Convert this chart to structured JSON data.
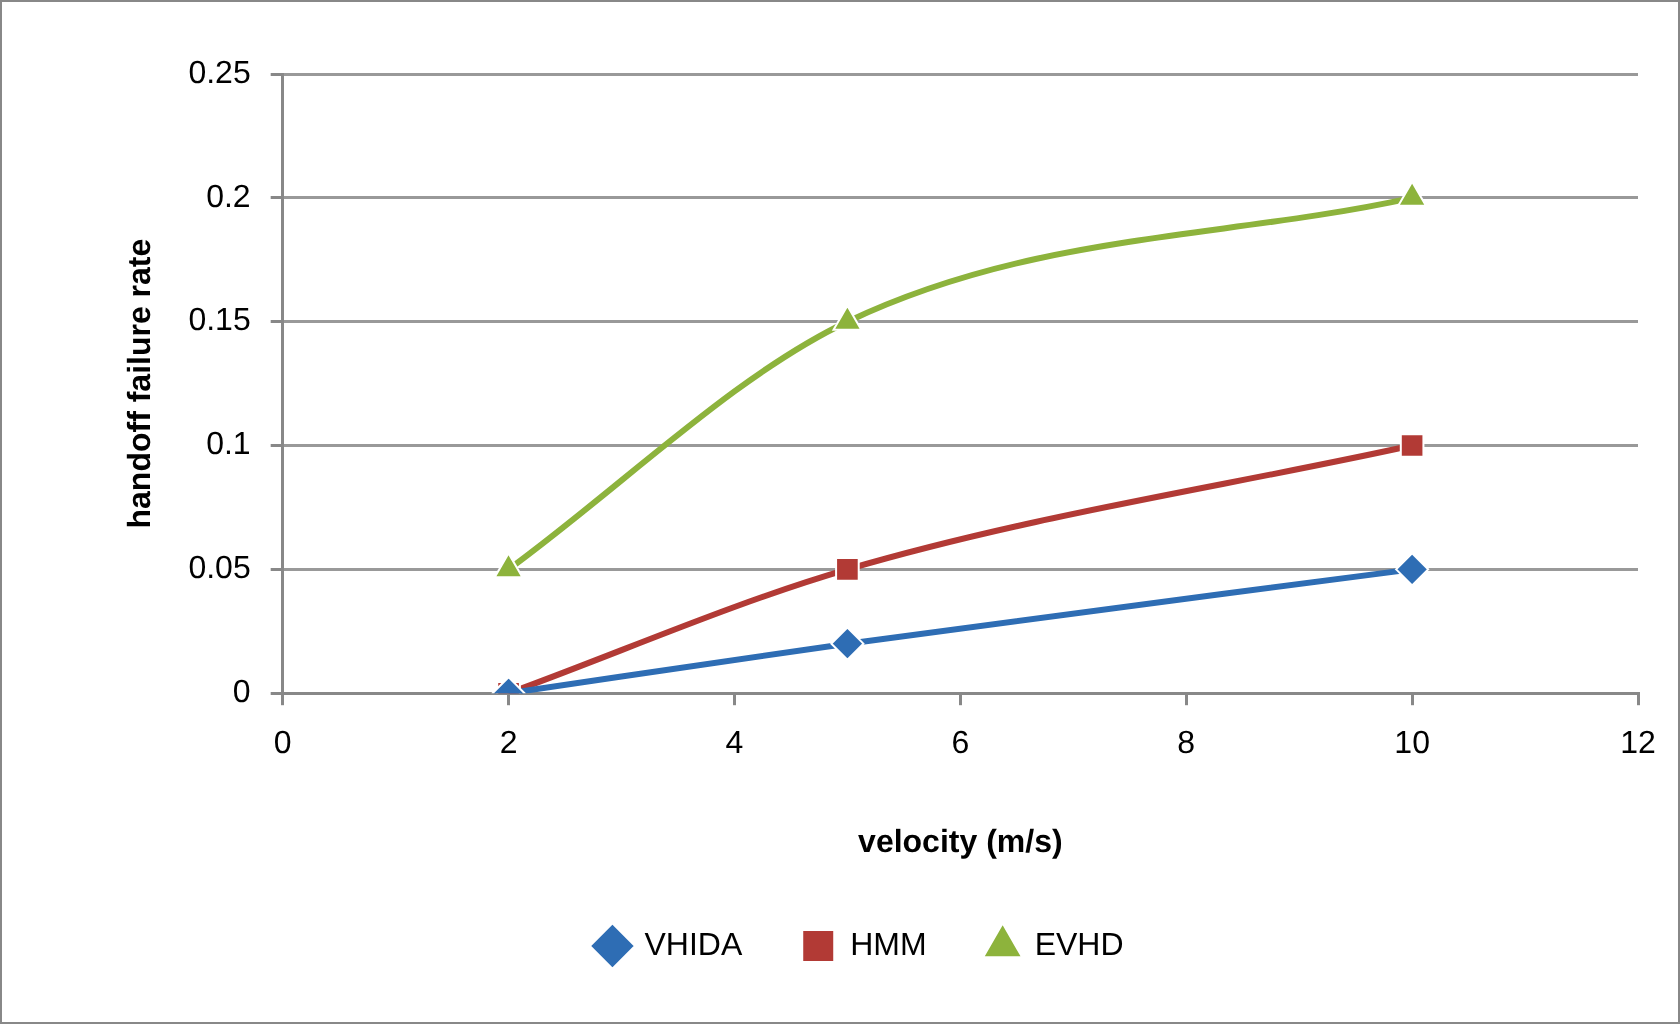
{
  "chart_data": {
    "type": "line",
    "xlabel": "velocity (m/s)",
    "ylabel": "handoff failure rate",
    "x": [
      2,
      5,
      10
    ],
    "series": [
      {
        "name": "VHIDA",
        "color": "#2e6db4",
        "marker": "diamond",
        "values": [
          0,
          0.02,
          0.05
        ]
      },
      {
        "name": "HMM",
        "color": "#b23a35",
        "marker": "square",
        "values": [
          0,
          0.05,
          0.1
        ]
      },
      {
        "name": "EVHD",
        "color": "#8db33c",
        "marker": "triangle",
        "values": [
          0.05,
          0.15,
          0.2
        ]
      }
    ],
    "xlim": [
      0,
      12
    ],
    "xticks": [
      0,
      2,
      4,
      6,
      8,
      10,
      12
    ],
    "ylim": [
      0,
      0.25
    ],
    "yticks": [
      0,
      0.05,
      0.1,
      0.15,
      0.2,
      0.25
    ],
    "grid": "y",
    "legend": "bottom",
    "line_style": "solid"
  }
}
